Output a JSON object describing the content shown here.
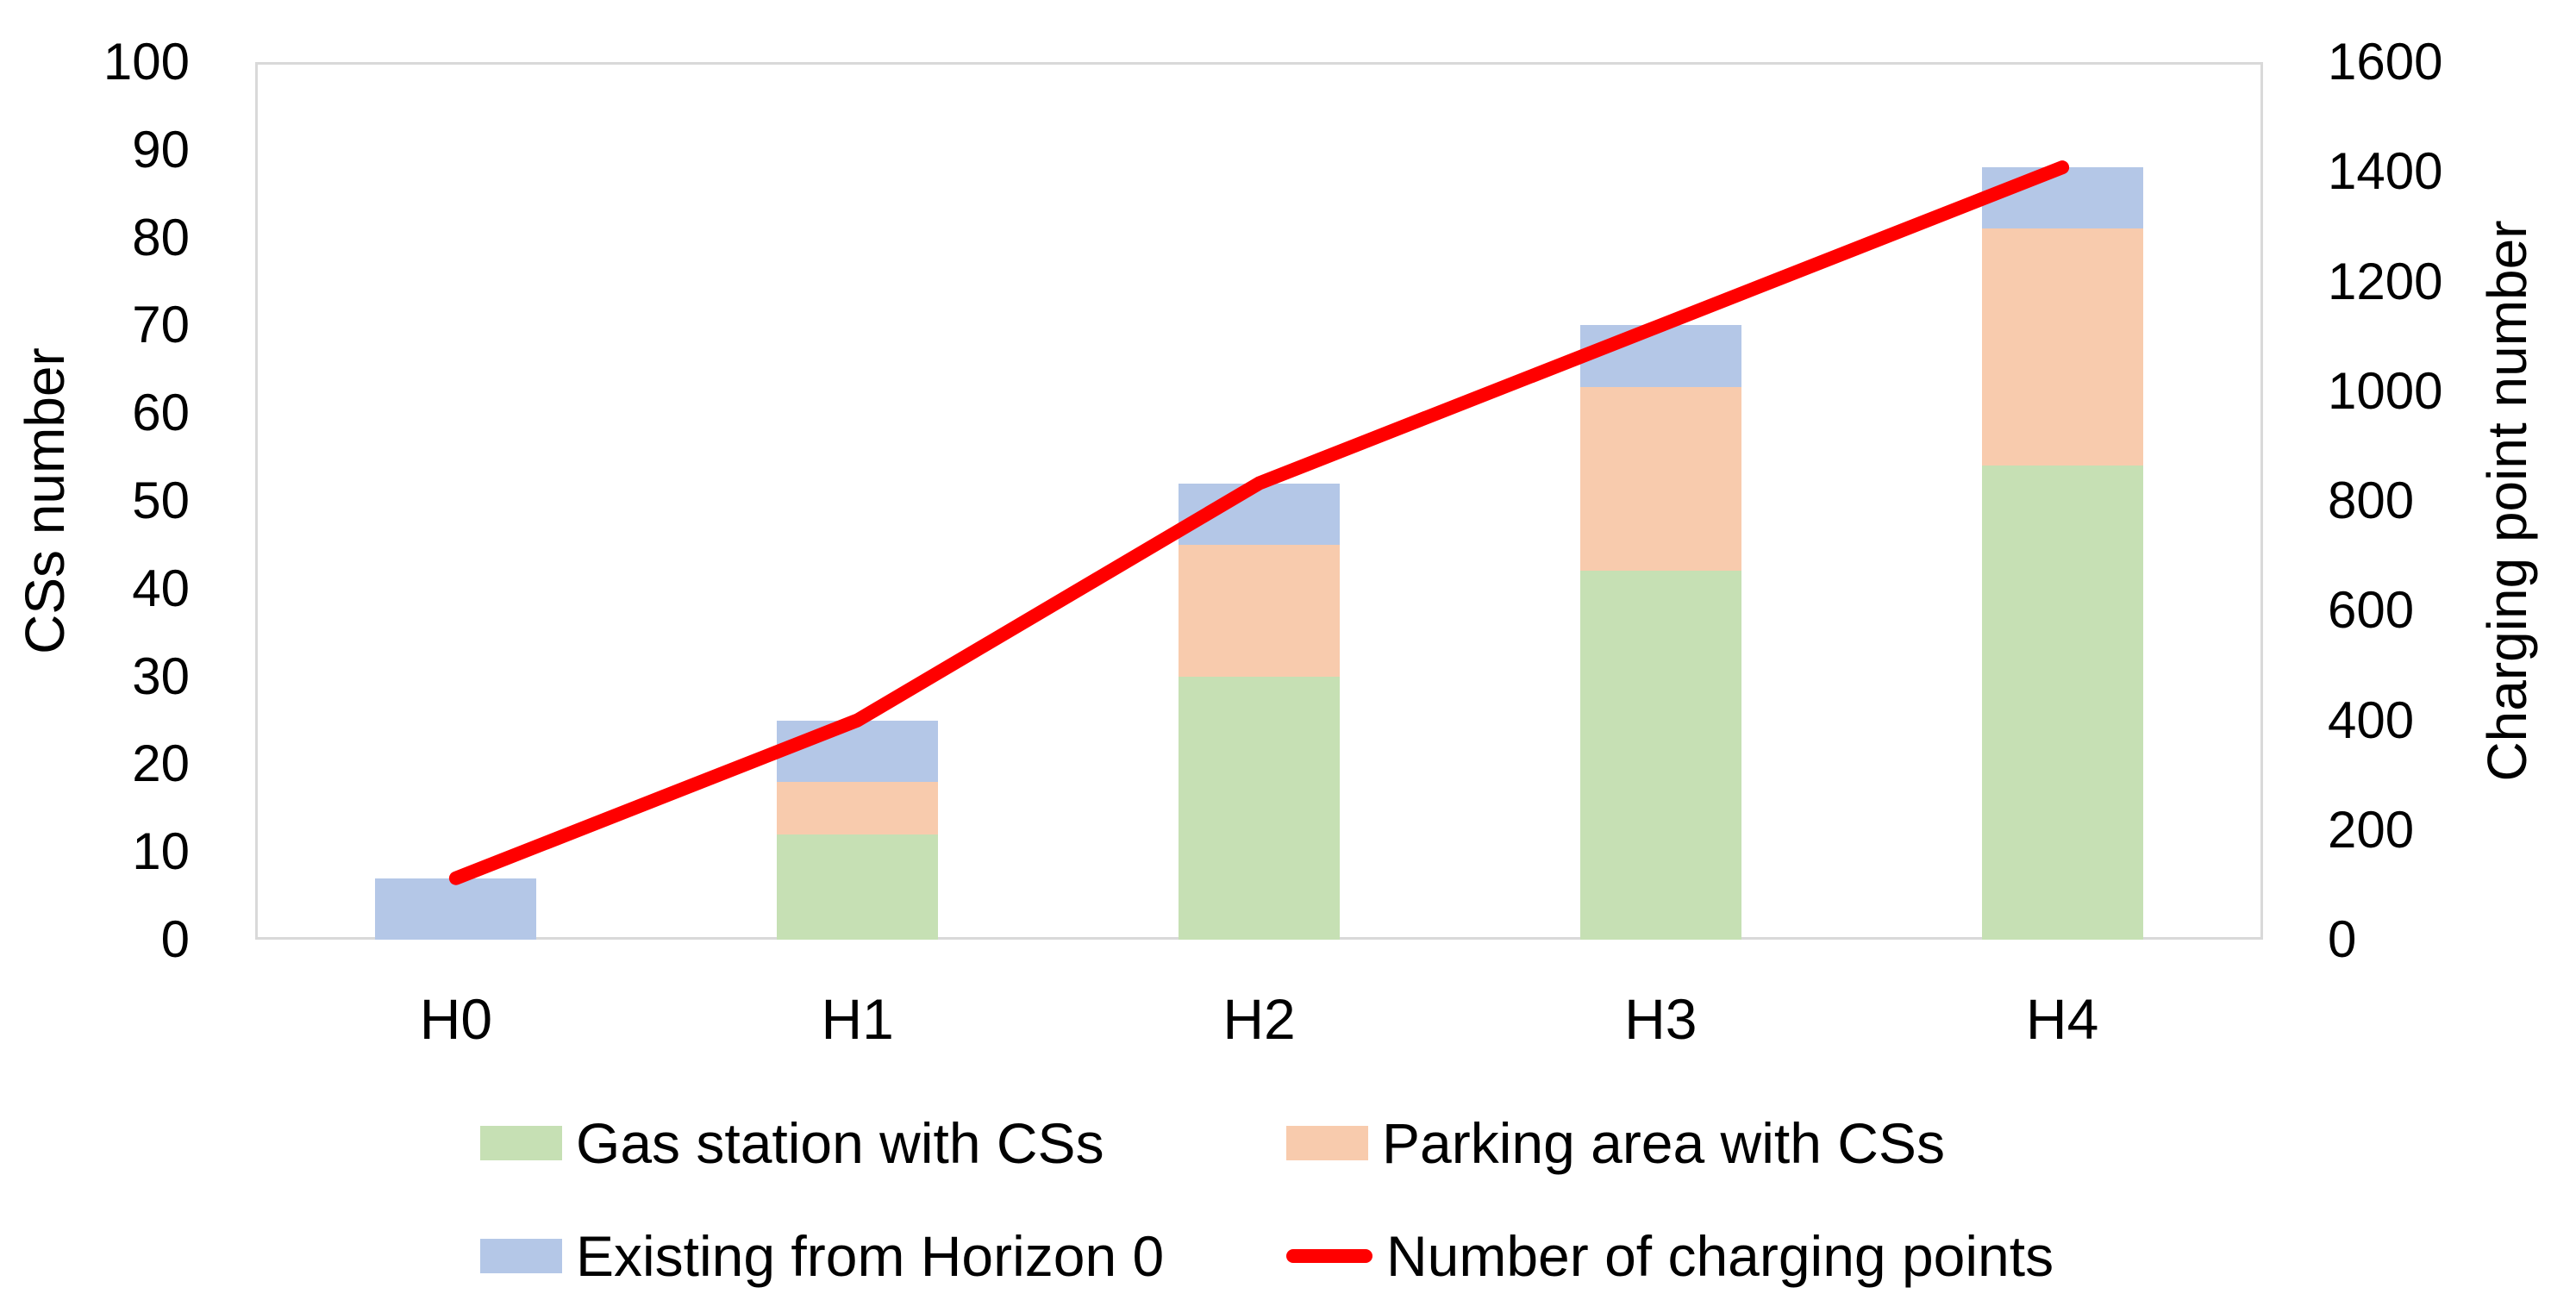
{
  "chart_data": {
    "type": "bar",
    "variant": "stacked-bars-with-line-overlay",
    "categories": [
      "H0",
      "H1",
      "H2",
      "H3",
      "H4"
    ],
    "series": [
      {
        "name": "Gas station with CSs",
        "type": "bar",
        "axis": "left",
        "color": "#C6E0B4",
        "values": [
          0,
          12,
          30,
          42,
          54
        ]
      },
      {
        "name": "Parking area with CSs",
        "type": "bar",
        "axis": "left",
        "color": "#F8CBAD",
        "values": [
          0,
          6,
          15,
          21,
          27
        ]
      },
      {
        "name": "Existing from Horizon 0",
        "type": "bar",
        "axis": "left",
        "color": "#B4C7E7",
        "values": [
          7,
          7,
          7,
          7,
          7
        ]
      },
      {
        "name": "Number of charging points",
        "type": "line",
        "axis": "right",
        "color": "#FF0000",
        "values": [
          112,
          400,
          832,
          1120,
          1408
        ]
      }
    ],
    "stacked_totals": [
      7,
      25,
      52,
      70,
      88
    ],
    "left_axis": {
      "label": "CSs number",
      "min": 0,
      "max": 100,
      "step": 10,
      "ticks": [
        0,
        10,
        20,
        30,
        40,
        50,
        60,
        70,
        80,
        90,
        100
      ]
    },
    "right_axis": {
      "label": "Charging point number",
      "min": 0,
      "max": 1600,
      "step": 200,
      "ticks": [
        0,
        200,
        400,
        600,
        800,
        1000,
        1200,
        1400,
        1600
      ]
    },
    "grid": false,
    "legend_position": "bottom",
    "legend_rows": [
      [
        "Gas station with CSs",
        "Parking area with CSs"
      ],
      [
        "Existing from Horizon 0",
        "Number of charging points"
      ]
    ],
    "colors": {
      "plot_border": "#D9D9D9",
      "text": "#000000",
      "background": "#FFFFFF"
    }
  }
}
